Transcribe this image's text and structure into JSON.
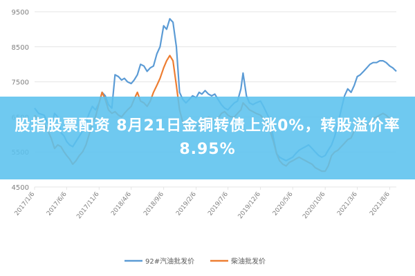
{
  "headline": "股指股票配资 8月21日金铜转债上涨0%，转股溢价率8.95%",
  "colors": {
    "series_92": "#5b9bd5",
    "series_diesel": "#ed7d31",
    "grid": "#e4e4e4",
    "text": "#7f7f7f",
    "banner": "#5bc1ee"
  },
  "chart_data": {
    "type": "line",
    "title": "",
    "xlabel": "",
    "ylabel": "",
    "ylim": [
      4500,
      9500
    ],
    "yticks": [
      4500,
      5500,
      6500,
      7500,
      8500,
      9500
    ],
    "xlim": [
      "2017-01-06",
      "2021-09-06"
    ],
    "xticks": [
      "2017/1/6",
      "2017/6/6",
      "2017/11/6",
      "2018/4/6",
      "2018/9/6",
      "2019/2/6",
      "2019/7/6",
      "2019/12/6",
      "2020/5/6",
      "2020/10/6",
      "2021/3/6",
      "2021/8/6"
    ],
    "grid": "horizontal",
    "legend": "bottom",
    "series": [
      {
        "name": "92#汽油批发价",
        "points": [
          [
            "2017-01-06",
            6750
          ],
          [
            "2017-01-25",
            6600
          ],
          [
            "2017-02-20",
            6550
          ],
          [
            "2017-03-10",
            6300
          ],
          [
            "2017-03-25",
            6200
          ],
          [
            "2017-04-10",
            6600
          ],
          [
            "2017-04-25",
            6500
          ],
          [
            "2017-05-10",
            6050
          ],
          [
            "2017-05-25",
            5950
          ],
          [
            "2017-06-06",
            5800
          ],
          [
            "2017-06-20",
            5700
          ],
          [
            "2017-07-05",
            5650
          ],
          [
            "2017-07-20",
            5800
          ],
          [
            "2017-08-05",
            5950
          ],
          [
            "2017-08-20",
            6100
          ],
          [
            "2017-09-05",
            6350
          ],
          [
            "2017-09-20",
            6600
          ],
          [
            "2017-10-05",
            6800
          ],
          [
            "2017-10-20",
            6700
          ],
          [
            "2017-11-06",
            6900
          ],
          [
            "2017-11-20",
            7200
          ],
          [
            "2017-12-05",
            7100
          ],
          [
            "2017-12-20",
            6850
          ],
          [
            "2018-01-05",
            6750
          ],
          [
            "2018-01-20",
            7700
          ],
          [
            "2018-02-05",
            7650
          ],
          [
            "2018-02-20",
            7550
          ],
          [
            "2018-03-05",
            7600
          ],
          [
            "2018-03-20",
            7500
          ],
          [
            "2018-04-06",
            7450
          ],
          [
            "2018-04-20",
            7550
          ],
          [
            "2018-05-05",
            7700
          ],
          [
            "2018-05-20",
            8000
          ],
          [
            "2018-06-05",
            7950
          ],
          [
            "2018-06-20",
            7800
          ],
          [
            "2018-07-05",
            7900
          ],
          [
            "2018-07-20",
            7950
          ],
          [
            "2018-08-05",
            8300
          ],
          [
            "2018-08-20",
            8500
          ],
          [
            "2018-09-06",
            9100
          ],
          [
            "2018-09-20",
            9000
          ],
          [
            "2018-10-05",
            9300
          ],
          [
            "2018-10-20",
            9200
          ],
          [
            "2018-11-05",
            8500
          ],
          [
            "2018-11-20",
            7200
          ],
          [
            "2018-12-05",
            7000
          ],
          [
            "2018-12-20",
            6900
          ],
          [
            "2019-01-05",
            7000
          ],
          [
            "2019-01-20",
            7100
          ],
          [
            "2019-02-06",
            7050
          ],
          [
            "2019-02-20",
            7200
          ],
          [
            "2019-03-05",
            7150
          ],
          [
            "2019-03-20",
            7250
          ],
          [
            "2019-04-05",
            7150
          ],
          [
            "2019-04-20",
            7100
          ],
          [
            "2019-05-05",
            7150
          ],
          [
            "2019-05-20",
            7000
          ],
          [
            "2019-06-05",
            6850
          ],
          [
            "2019-06-20",
            6750
          ],
          [
            "2019-07-06",
            6700
          ],
          [
            "2019-07-20",
            6800
          ],
          [
            "2019-08-05",
            6900
          ],
          [
            "2019-08-20",
            6950
          ],
          [
            "2019-09-05",
            7300
          ],
          [
            "2019-09-15",
            7750
          ],
          [
            "2019-10-01",
            7100
          ],
          [
            "2019-10-15",
            6900
          ],
          [
            "2019-11-01",
            6850
          ],
          [
            "2019-11-15",
            6900
          ],
          [
            "2019-12-06",
            6950
          ],
          [
            "2019-12-20",
            6800
          ],
          [
            "2020-01-05",
            6600
          ],
          [
            "2020-01-20",
            6400
          ],
          [
            "2020-02-05",
            5900
          ],
          [
            "2020-02-20",
            5450
          ],
          [
            "2020-03-05",
            5350
          ],
          [
            "2020-03-20",
            5300
          ],
          [
            "2020-04-05",
            5250
          ],
          [
            "2020-04-20",
            5300
          ],
          [
            "2020-05-06",
            5350
          ],
          [
            "2020-05-20",
            5450
          ],
          [
            "2020-06-05",
            5550
          ],
          [
            "2020-06-20",
            5600
          ],
          [
            "2020-07-05",
            5650
          ],
          [
            "2020-07-20",
            5700
          ],
          [
            "2020-08-05",
            5600
          ],
          [
            "2020-08-20",
            5500
          ],
          [
            "2020-09-05",
            5400
          ],
          [
            "2020-09-20",
            5350
          ],
          [
            "2020-10-06",
            5400
          ],
          [
            "2020-10-20",
            5550
          ],
          [
            "2020-11-05",
            5700
          ],
          [
            "2020-11-20",
            5950
          ],
          [
            "2020-12-05",
            6300
          ],
          [
            "2020-12-20",
            6700
          ],
          [
            "2021-01-05",
            7100
          ],
          [
            "2021-01-20",
            7300
          ],
          [
            "2021-02-05",
            7200
          ],
          [
            "2021-02-20",
            7400
          ],
          [
            "2021-03-06",
            7650
          ],
          [
            "2021-03-20",
            7700
          ],
          [
            "2021-04-05",
            7800
          ],
          [
            "2021-04-20",
            7900
          ],
          [
            "2021-05-05",
            8000
          ],
          [
            "2021-05-20",
            8050
          ],
          [
            "2021-06-05",
            8050
          ],
          [
            "2021-06-20",
            8100
          ],
          [
            "2021-07-05",
            8100
          ],
          [
            "2021-07-20",
            8050
          ],
          [
            "2021-08-06",
            7950
          ],
          [
            "2021-08-20",
            7900
          ],
          [
            "2021-09-06",
            7800
          ]
        ]
      },
      {
        "name": "柴油批发价",
        "points": [
          [
            "2017-01-06",
            6550
          ],
          [
            "2017-01-25",
            6400
          ],
          [
            "2017-02-20",
            6300
          ],
          [
            "2017-03-10",
            6100
          ],
          [
            "2017-03-25",
            5900
          ],
          [
            "2017-04-10",
            5600
          ],
          [
            "2017-04-25",
            5700
          ],
          [
            "2017-05-10",
            5650
          ],
          [
            "2017-05-25",
            5500
          ],
          [
            "2017-06-06",
            5400
          ],
          [
            "2017-06-20",
            5300
          ],
          [
            "2017-07-05",
            5150
          ],
          [
            "2017-07-20",
            5250
          ],
          [
            "2017-08-05",
            5400
          ],
          [
            "2017-08-20",
            5500
          ],
          [
            "2017-09-05",
            5700
          ],
          [
            "2017-09-20",
            6000
          ],
          [
            "2017-10-05",
            6350
          ],
          [
            "2017-10-20",
            6500
          ],
          [
            "2017-11-06",
            6900
          ],
          [
            "2017-11-20",
            7200
          ],
          [
            "2017-12-05",
            7000
          ],
          [
            "2017-12-20",
            6700
          ],
          [
            "2018-01-05",
            6600
          ],
          [
            "2018-01-20",
            6650
          ],
          [
            "2018-02-05",
            6550
          ],
          [
            "2018-02-20",
            6500
          ],
          [
            "2018-03-05",
            6600
          ],
          [
            "2018-03-20",
            6700
          ],
          [
            "2018-04-06",
            6800
          ],
          [
            "2018-04-20",
            7000
          ],
          [
            "2018-05-05",
            7200
          ],
          [
            "2018-05-20",
            6950
          ],
          [
            "2018-06-05",
            6900
          ],
          [
            "2018-06-20",
            6800
          ],
          [
            "2018-07-05",
            6950
          ],
          [
            "2018-07-20",
            7200
          ],
          [
            "2018-08-05",
            7400
          ],
          [
            "2018-08-20",
            7600
          ],
          [
            "2018-09-06",
            7900
          ],
          [
            "2018-09-20",
            8100
          ],
          [
            "2018-10-05",
            8250
          ],
          [
            "2018-10-20",
            8100
          ],
          [
            "2018-11-05",
            7400
          ],
          [
            "2018-11-20",
            6700
          ],
          [
            "2018-12-05",
            6350
          ],
          [
            "2018-12-20",
            6200
          ],
          [
            "2019-01-05",
            6150
          ],
          [
            "2019-01-20",
            6100
          ],
          [
            "2019-02-06",
            6150
          ],
          [
            "2019-02-20",
            6300
          ],
          [
            "2019-03-05",
            6350
          ],
          [
            "2019-03-20",
            6400
          ],
          [
            "2019-04-05",
            6500
          ],
          [
            "2019-04-20",
            6450
          ],
          [
            "2019-05-05",
            6400
          ],
          [
            "2019-05-20",
            6450
          ],
          [
            "2019-06-05",
            6600
          ],
          [
            "2019-06-20",
            6650
          ],
          [
            "2019-07-06",
            6550
          ],
          [
            "2019-07-20",
            6500
          ],
          [
            "2019-08-05",
            6500
          ],
          [
            "2019-08-20",
            6600
          ],
          [
            "2019-09-05",
            6700
          ],
          [
            "2019-09-15",
            6900
          ],
          [
            "2019-10-01",
            6800
          ],
          [
            "2019-10-15",
            6700
          ],
          [
            "2019-11-01",
            6650
          ],
          [
            "2019-11-15",
            6600
          ],
          [
            "2019-12-06",
            6550
          ],
          [
            "2019-12-20",
            6450
          ],
          [
            "2020-01-05",
            6300
          ],
          [
            "2020-01-20",
            6100
          ],
          [
            "2020-02-05",
            5800
          ],
          [
            "2020-02-20",
            5450
          ],
          [
            "2020-03-05",
            5250
          ],
          [
            "2020-03-20",
            5150
          ],
          [
            "2020-04-05",
            5100
          ],
          [
            "2020-04-20",
            5200
          ],
          [
            "2020-05-06",
            5250
          ],
          [
            "2020-05-20",
            5300
          ],
          [
            "2020-06-05",
            5350
          ],
          [
            "2020-06-20",
            5300
          ],
          [
            "2020-07-05",
            5250
          ],
          [
            "2020-07-20",
            5200
          ],
          [
            "2020-08-05",
            5150
          ],
          [
            "2020-08-20",
            5050
          ],
          [
            "2020-09-05",
            5000
          ],
          [
            "2020-09-20",
            4950
          ],
          [
            "2020-10-06",
            4950
          ],
          [
            "2020-10-20",
            5100
          ],
          [
            "2020-11-05",
            5400
          ],
          [
            "2020-11-20",
            5500
          ],
          [
            "2020-12-05",
            5550
          ],
          [
            "2020-12-20",
            5650
          ],
          [
            "2021-01-05",
            5750
          ],
          [
            "2021-01-20",
            5850
          ],
          [
            "2021-02-05",
            5900
          ],
          [
            "2021-02-20",
            6100
          ],
          [
            "2021-03-06",
            6300
          ],
          [
            "2021-03-20",
            6350
          ],
          [
            "2021-04-05",
            6300
          ],
          [
            "2021-04-20",
            6250
          ],
          [
            "2021-05-05",
            6350
          ],
          [
            "2021-05-20",
            6450
          ],
          [
            "2021-06-05",
            6500
          ],
          [
            "2021-06-20",
            6550
          ],
          [
            "2021-07-05",
            6600
          ],
          [
            "2021-07-20",
            6550
          ],
          [
            "2021-08-06",
            6450
          ],
          [
            "2021-08-20",
            6350
          ],
          [
            "2021-09-06",
            6300
          ]
        ]
      }
    ]
  }
}
